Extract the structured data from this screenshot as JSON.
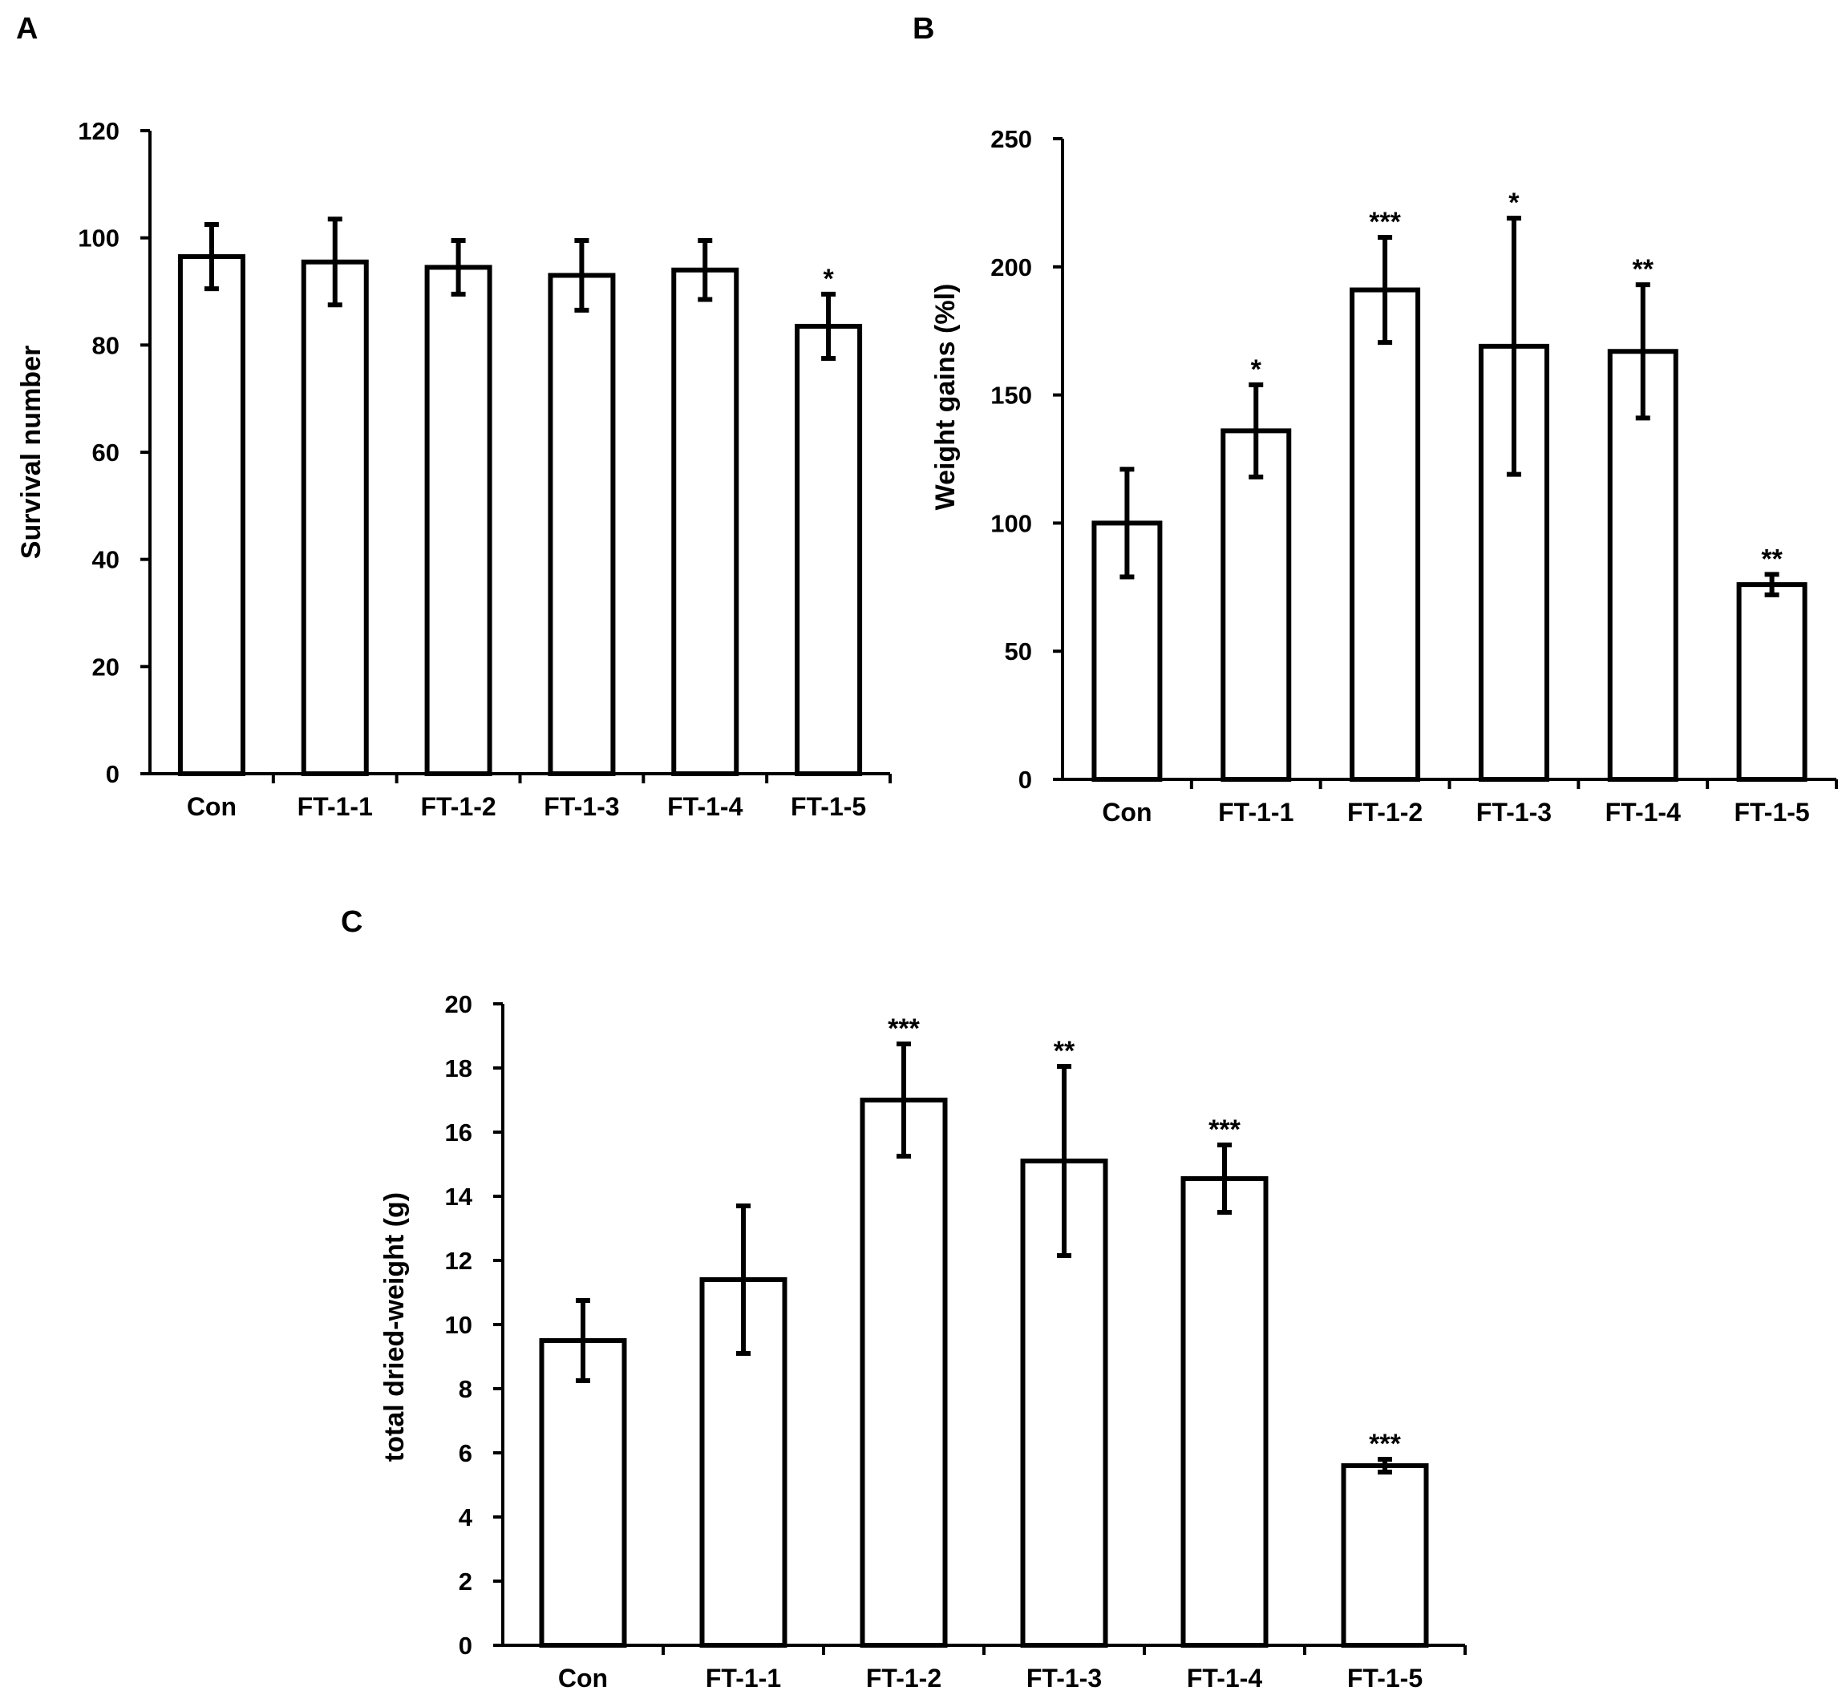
{
  "panels": [
    "A",
    "B",
    "C"
  ],
  "chart_data": [
    {
      "panel": "A",
      "type": "bar",
      "title": "",
      "xlabel": "",
      "ylabel": "Survival number",
      "ylim": [
        0,
        120
      ],
      "yticks": [
        0,
        20,
        40,
        60,
        80,
        100,
        120
      ],
      "categories": [
        "Con",
        "FT-1-1",
        "FT-1-2",
        "FT-1-3",
        "FT-1-4",
        "FT-1-5"
      ],
      "values": [
        96.5,
        95.5,
        94.5,
        93,
        94,
        83.5
      ],
      "errors": [
        6,
        8,
        5,
        6.5,
        5.5,
        6
      ],
      "significance": [
        "",
        "",
        "",
        "",
        "",
        "*"
      ]
    },
    {
      "panel": "B",
      "type": "bar",
      "title": "",
      "xlabel": "",
      "ylabel": "Weight gains (%l)",
      "ylim": [
        0,
        250
      ],
      "yticks": [
        0,
        50,
        100,
        150,
        200,
        250
      ],
      "categories": [
        "Con",
        "FT-1-1",
        "FT-1-2",
        "FT-1-3",
        "FT-1-4",
        "FT-1-5"
      ],
      "values": [
        100,
        136,
        191,
        169,
        167,
        76
      ],
      "errors": [
        21,
        18,
        20.5,
        50,
        26,
        4
      ],
      "significance": [
        "",
        "*",
        "***",
        "*",
        "**",
        "**"
      ]
    },
    {
      "panel": "C",
      "type": "bar",
      "title": "",
      "xlabel": "",
      "ylabel": "total dried-weight (g)",
      "ylim": [
        0,
        20
      ],
      "yticks": [
        0,
        2,
        4,
        6,
        8,
        10,
        12,
        14,
        16,
        18,
        20
      ],
      "categories": [
        "Con",
        "FT-1-1",
        "FT-1-2",
        "FT-1-3",
        "FT-1-4",
        "FT-1-5"
      ],
      "values": [
        9.5,
        11.4,
        17,
        15.1,
        14.55,
        5.6
      ],
      "errors": [
        1.25,
        2.3,
        1.75,
        2.95,
        1.05,
        0.2
      ],
      "significance": [
        "",
        "",
        "***",
        "**",
        "***",
        "***"
      ]
    }
  ]
}
